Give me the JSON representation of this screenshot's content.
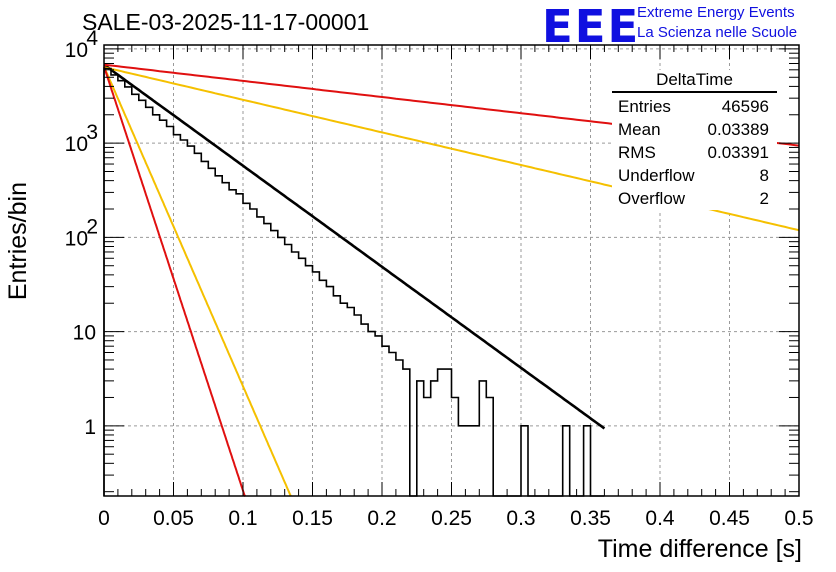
{
  "chart_data": {
    "type": "histogram",
    "title": "SALE-03-2025-11-17-00001",
    "xlabel": "Time difference [s]",
    "ylabel": "Entries/bin",
    "xlim": [
      0,
      0.5
    ],
    "ylim": [
      0.18,
      11000
    ],
    "yscale": "log",
    "grid": true,
    "xticks": [
      "0",
      "0.05",
      "0.1",
      "0.15",
      "0.2",
      "0.25",
      "0.3",
      "0.35",
      "0.4",
      "0.45",
      "0.5"
    ],
    "yticks": [
      {
        "value": 1,
        "label": "1"
      },
      {
        "value": 10,
        "label": "10"
      },
      {
        "value": 100,
        "label": "10",
        "exp": "2"
      },
      {
        "value": 1000,
        "label": "10",
        "exp": "3"
      },
      {
        "value": 10000,
        "label": "10",
        "exp": "4"
      }
    ],
    "histogram": {
      "name": "DeltaTime",
      "bin_width": 0.005,
      "counts": [
        6200,
        5300,
        4600,
        3950,
        3300,
        2850,
        2400,
        2000,
        1750,
        1500,
        1230,
        1080,
        930,
        780,
        640,
        540,
        450,
        380,
        320,
        290,
        230,
        200,
        165,
        140,
        118,
        100,
        84,
        70,
        60,
        50,
        43,
        35,
        30,
        24,
        20,
        18,
        15,
        12,
        10,
        9,
        7,
        6,
        5,
        4,
        0.18,
        3,
        2,
        3,
        4,
        4,
        2,
        1,
        1,
        1,
        3,
        2,
        0.18,
        0.18,
        0.18,
        0.18,
        1,
        0.18,
        0.18,
        0.18,
        0.18,
        0.18,
        1,
        0.18,
        0.18,
        1,
        0.18,
        0.18
      ]
    },
    "fits": [
      {
        "name": "fit",
        "color": "#000000",
        "A": 6800,
        "tau": 0.0405,
        "xmax": 0.36
      },
      {
        "name": "red-slow",
        "color": "#e01010",
        "A": 6800,
        "tau": 0.253,
        "xmax": 0.5
      },
      {
        "name": "orange-slow",
        "color": "#f5c000",
        "A": 6400,
        "tau": 0.1255,
        "xmax": 0.5
      },
      {
        "name": "orange-fast",
        "color": "#f5c000",
        "A": 6500,
        "tau": 0.0128,
        "xmax": 0.14
      },
      {
        "name": "red-fast",
        "color": "#e01010",
        "A": 6500,
        "tau": 0.00965,
        "xmax": 0.11
      }
    ]
  },
  "stats": {
    "title": "DeltaTime",
    "rows": [
      {
        "label": "Entries",
        "value": "46596"
      },
      {
        "label": "Mean",
        "value": "0.03389"
      },
      {
        "label": "RMS",
        "value": "0.03391"
      },
      {
        "label": "Underflow",
        "value": "8"
      },
      {
        "label": "Overflow",
        "value": "2"
      }
    ]
  },
  "logo": {
    "letters": "EEE",
    "line1": "Extreme Energy Events",
    "line2": "La Scienza nelle Scuole"
  }
}
